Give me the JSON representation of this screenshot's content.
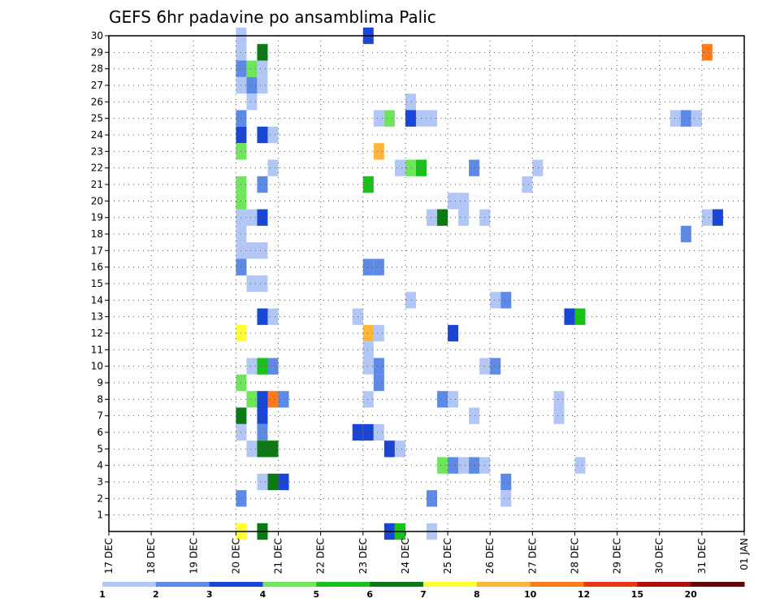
{
  "chart_data": {
    "type": "heatmap",
    "title": "GEFS 6hr padavine po ansamblima Palic",
    "xlabel": "",
    "ylabel": "",
    "x_ticks": [
      "17 DEC",
      "18 DEC",
      "19 DEC",
      "20 DEC",
      "21 DEC",
      "22 DEC",
      "23 DEC",
      "24 DEC",
      "25 DEC",
      "26 DEC",
      "27 DEC",
      "28 DEC",
      "29 DEC",
      "30 DEC",
      "31 DEC",
      "01 JAN"
    ],
    "y_ticks": [
      "1",
      "2",
      "3",
      "4",
      "5",
      "6",
      "7",
      "8",
      "9",
      "10",
      "11",
      "12",
      "13",
      "14",
      "15",
      "16",
      "17",
      "18",
      "19",
      "20",
      "21",
      "22",
      "23",
      "24",
      "25",
      "26",
      "27",
      "28",
      "29",
      "30"
    ],
    "grid": true,
    "colorbar": {
      "labels": [
        "1",
        "2",
        "3",
        "4",
        "5",
        "6",
        "7",
        "8",
        "10",
        "12",
        "15",
        "20"
      ],
      "colors": [
        "#b3c7f7",
        "#5c8ae6",
        "#1a46d6",
        "#6ee65a",
        "#18c21a",
        "#0a7a14",
        "#ffff33",
        "#ffb638",
        "#ff7a1a",
        "#e63a14",
        "#b30c0c",
        "#660505"
      ]
    },
    "cell_x_unit": "6-hour step from 17 DEC 00z",
    "cells": [
      {
        "x": 12,
        "y": 30,
        "v": 1
      },
      {
        "x": 12,
        "y": 29,
        "v": 1
      },
      {
        "x": 12,
        "y": 28,
        "v": 2
      },
      {
        "x": 12,
        "y": 27,
        "v": 1
      },
      {
        "x": 12,
        "y": 25,
        "v": 2
      },
      {
        "x": 12,
        "y": 24,
        "v": 3
      },
      {
        "x": 12,
        "y": 23,
        "v": 4
      },
      {
        "x": 12,
        "y": 21,
        "v": 4
      },
      {
        "x": 12,
        "y": 20,
        "v": 4
      },
      {
        "x": 12,
        "y": 19,
        "v": 1
      },
      {
        "x": 12,
        "y": 18,
        "v": 1
      },
      {
        "x": 12,
        "y": 17,
        "v": 1
      },
      {
        "x": 12,
        "y": 16,
        "v": 2
      },
      {
        "x": 12,
        "y": 12,
        "v": 7
      },
      {
        "x": 12,
        "y": 9,
        "v": 4
      },
      {
        "x": 12,
        "y": 7,
        "v": 6
      },
      {
        "x": 12,
        "y": 6,
        "v": 1
      },
      {
        "x": 12,
        "y": 2,
        "v": 2
      },
      {
        "x": 12,
        "y": 0,
        "v": 7
      },
      {
        "x": 13,
        "y": 28,
        "v": 4
      },
      {
        "x": 13,
        "y": 27,
        "v": 2
      },
      {
        "x": 13,
        "y": 26,
        "v": 1
      },
      {
        "x": 13,
        "y": 19,
        "v": 1
      },
      {
        "x": 13,
        "y": 17,
        "v": 1
      },
      {
        "x": 13,
        "y": 15,
        "v": 1
      },
      {
        "x": 13,
        "y": 10,
        "v": 1
      },
      {
        "x": 13,
        "y": 8,
        "v": 4
      },
      {
        "x": 13,
        "y": 5,
        "v": 1
      },
      {
        "x": 14,
        "y": 29,
        "v": 6
      },
      {
        "x": 14,
        "y": 28,
        "v": 1
      },
      {
        "x": 14,
        "y": 27,
        "v": 1
      },
      {
        "x": 14,
        "y": 24,
        "v": 3
      },
      {
        "x": 14,
        "y": 21,
        "v": 2
      },
      {
        "x": 14,
        "y": 19,
        "v": 3
      },
      {
        "x": 14,
        "y": 17,
        "v": 1
      },
      {
        "x": 14,
        "y": 15,
        "v": 1
      },
      {
        "x": 14,
        "y": 13,
        "v": 3
      },
      {
        "x": 14,
        "y": 10,
        "v": 5
      },
      {
        "x": 14,
        "y": 8,
        "v": 3
      },
      {
        "x": 14,
        "y": 7,
        "v": 3
      },
      {
        "x": 14,
        "y": 6,
        "v": 2
      },
      {
        "x": 14,
        "y": 5,
        "v": 6
      },
      {
        "x": 14,
        "y": 3,
        "v": 1
      },
      {
        "x": 14,
        "y": 0,
        "v": 6
      },
      {
        "x": 15,
        "y": 24,
        "v": 1
      },
      {
        "x": 15,
        "y": 22,
        "v": 1
      },
      {
        "x": 15,
        "y": 13,
        "v": 1
      },
      {
        "x": 15,
        "y": 10,
        "v": 2
      },
      {
        "x": 15,
        "y": 8,
        "v": 10
      },
      {
        "x": 15,
        "y": 5,
        "v": 6
      },
      {
        "x": 15,
        "y": 3,
        "v": 6
      },
      {
        "x": 16,
        "y": 8,
        "v": 2
      },
      {
        "x": 16,
        "y": 3,
        "v": 3
      },
      {
        "x": 23,
        "y": 13,
        "v": 1
      },
      {
        "x": 23,
        "y": 6,
        "v": 3
      },
      {
        "x": 24,
        "y": 30,
        "v": 3
      },
      {
        "x": 24,
        "y": 21,
        "v": 5
      },
      {
        "x": 24,
        "y": 16,
        "v": 2
      },
      {
        "x": 24,
        "y": 12,
        "v": 8
      },
      {
        "x": 24,
        "y": 11,
        "v": 1
      },
      {
        "x": 24,
        "y": 10,
        "v": 1
      },
      {
        "x": 24,
        "y": 8,
        "v": 1
      },
      {
        "x": 24,
        "y": 6,
        "v": 3
      },
      {
        "x": 25,
        "y": 25,
        "v": 1
      },
      {
        "x": 25,
        "y": 23,
        "v": 8
      },
      {
        "x": 25,
        "y": 16,
        "v": 2
      },
      {
        "x": 25,
        "y": 12,
        "v": 1
      },
      {
        "x": 25,
        "y": 10,
        "v": 2
      },
      {
        "x": 25,
        "y": 9,
        "v": 2
      },
      {
        "x": 25,
        "y": 6,
        "v": 1
      },
      {
        "x": 26,
        "y": 25,
        "v": 4
      },
      {
        "x": 26,
        "y": 5,
        "v": 3
      },
      {
        "x": 26,
        "y": 0,
        "v": 3
      },
      {
        "x": 27,
        "y": 22,
        "v": 1
      },
      {
        "x": 27,
        "y": 5,
        "v": 1
      },
      {
        "x": 27,
        "y": 0,
        "v": 5
      },
      {
        "x": 28,
        "y": 26,
        "v": 1
      },
      {
        "x": 28,
        "y": 25,
        "v": 3
      },
      {
        "x": 28,
        "y": 22,
        "v": 4
      },
      {
        "x": 28,
        "y": 14,
        "v": 1
      },
      {
        "x": 29,
        "y": 25,
        "v": 1
      },
      {
        "x": 29,
        "y": 22,
        "v": 5
      },
      {
        "x": 30,
        "y": 25,
        "v": 1
      },
      {
        "x": 30,
        "y": 19,
        "v": 1
      },
      {
        "x": 30,
        "y": 2,
        "v": 2
      },
      {
        "x": 30,
        "y": 0,
        "v": 1
      },
      {
        "x": 31,
        "y": 19,
        "v": 6
      },
      {
        "x": 31,
        "y": 8,
        "v": 2
      },
      {
        "x": 31,
        "y": 4,
        "v": 4
      },
      {
        "x": 32,
        "y": 20,
        "v": 1
      },
      {
        "x": 32,
        "y": 12,
        "v": 3
      },
      {
        "x": 32,
        "y": 8,
        "v": 1
      },
      {
        "x": 32,
        "y": 4,
        "v": 2
      },
      {
        "x": 33,
        "y": 20,
        "v": 1
      },
      {
        "x": 33,
        "y": 19,
        "v": 1
      },
      {
        "x": 33,
        "y": 4,
        "v": 1
      },
      {
        "x": 34,
        "y": 22,
        "v": 2
      },
      {
        "x": 34,
        "y": 7,
        "v": 1
      },
      {
        "x": 34,
        "y": 4,
        "v": 2
      },
      {
        "x": 35,
        "y": 19,
        "v": 1
      },
      {
        "x": 35,
        "y": 10,
        "v": 1
      },
      {
        "x": 35,
        "y": 4,
        "v": 1
      },
      {
        "x": 36,
        "y": 14,
        "v": 1
      },
      {
        "x": 36,
        "y": 10,
        "v": 2
      },
      {
        "x": 37,
        "y": 14,
        "v": 2
      },
      {
        "x": 37,
        "y": 3,
        "v": 2
      },
      {
        "x": 37,
        "y": 2,
        "v": 1
      },
      {
        "x": 39,
        "y": 21,
        "v": 1
      },
      {
        "x": 40,
        "y": 22,
        "v": 1
      },
      {
        "x": 42,
        "y": 8,
        "v": 1
      },
      {
        "x": 42,
        "y": 7,
        "v": 1
      },
      {
        "x": 43,
        "y": 13,
        "v": 3
      },
      {
        "x": 44,
        "y": 13,
        "v": 5
      },
      {
        "x": 44,
        "y": 4,
        "v": 1
      },
      {
        "x": 53,
        "y": 25,
        "v": 1
      },
      {
        "x": 54,
        "y": 25,
        "v": 2
      },
      {
        "x": 54,
        "y": 18,
        "v": 2
      },
      {
        "x": 55,
        "y": 25,
        "v": 1
      },
      {
        "x": 56,
        "y": 29,
        "v": 10
      },
      {
        "x": 56,
        "y": 19,
        "v": 1
      },
      {
        "x": 57,
        "y": 19,
        "v": 3
      }
    ]
  }
}
